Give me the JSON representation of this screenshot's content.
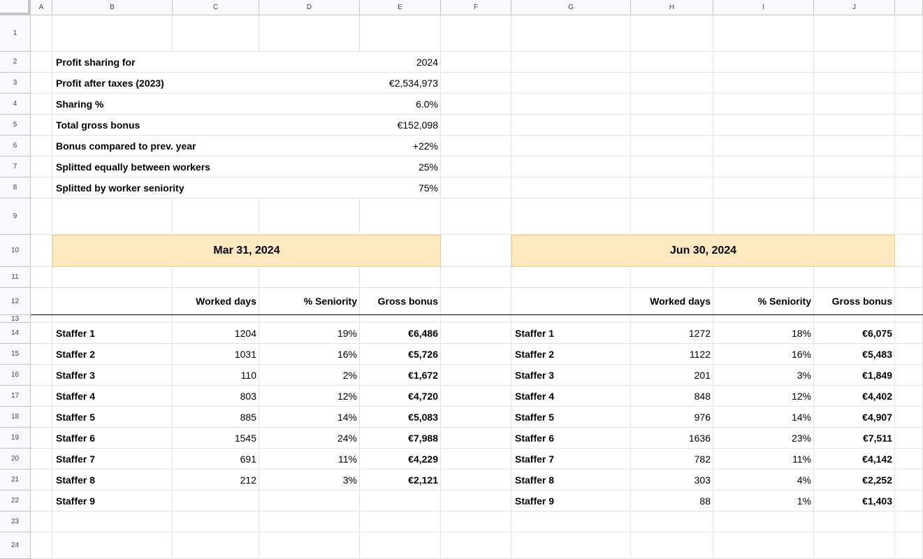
{
  "columns": [
    "A",
    "B",
    "C",
    "D",
    "E",
    "F",
    "G",
    "H",
    "I",
    "J"
  ],
  "rows": [
    "1",
    "2",
    "3",
    "4",
    "5",
    "6",
    "7",
    "8",
    "9",
    "10",
    "11",
    "12",
    "13",
    "14",
    "15",
    "16",
    "17",
    "18",
    "19",
    "20",
    "21",
    "22",
    "23",
    "24"
  ],
  "summary": [
    {
      "label": "Profit sharing for",
      "value": "2024"
    },
    {
      "label": "Profit after taxes (2023)",
      "value": "€2,534,973"
    },
    {
      "label": "Sharing %",
      "value": "6.0%"
    },
    {
      "label": "Total gross bonus",
      "value": "€152,098"
    },
    {
      "label": "Bonus compared to prev. year",
      "value": "+22%"
    },
    {
      "label": "Splitted equally between workers",
      "value": "25%"
    },
    {
      "label": "Splitted by worker seniority",
      "value": "75%"
    }
  ],
  "blocks": [
    {
      "date": "Mar 31, 2024",
      "headers": {
        "worked_days": "Worked days",
        "seniority": "% Seniority",
        "gross_bonus": "Gross bonus"
      },
      "rows": [
        {
          "name": "Staffer 1",
          "days": "1204",
          "pct": "19%",
          "bonus": "€6,486"
        },
        {
          "name": "Staffer 2",
          "days": "1031",
          "pct": "16%",
          "bonus": "€5,726"
        },
        {
          "name": "Staffer 3",
          "days": "110",
          "pct": "2%",
          "bonus": "€1,672"
        },
        {
          "name": "Staffer 4",
          "days": "803",
          "pct": "12%",
          "bonus": "€4,720"
        },
        {
          "name": "Staffer 5",
          "days": "885",
          "pct": "14%",
          "bonus": "€5,083"
        },
        {
          "name": "Staffer 6",
          "days": "1545",
          "pct": "24%",
          "bonus": "€7,988"
        },
        {
          "name": "Staffer 7",
          "days": "691",
          "pct": "11%",
          "bonus": "€4,229"
        },
        {
          "name": "Staffer 8",
          "days": "212",
          "pct": "3%",
          "bonus": "€2,121"
        },
        {
          "name": "Staffer 9",
          "days": "",
          "pct": "",
          "bonus": ""
        }
      ]
    },
    {
      "date": "Jun 30, 2024",
      "headers": {
        "worked_days": "Worked days",
        "seniority": "% Seniority",
        "gross_bonus": "Gross bonus"
      },
      "rows": [
        {
          "name": "Staffer 1",
          "days": "1272",
          "pct": "18%",
          "bonus": "€6,075"
        },
        {
          "name": "Staffer 2",
          "days": "1122",
          "pct": "16%",
          "bonus": "€5,483"
        },
        {
          "name": "Staffer 3",
          "days": "201",
          "pct": "3%",
          "bonus": "€1,849"
        },
        {
          "name": "Staffer 4",
          "days": "848",
          "pct": "12%",
          "bonus": "€4,402"
        },
        {
          "name": "Staffer 5",
          "days": "976",
          "pct": "14%",
          "bonus": "€4,907"
        },
        {
          "name": "Staffer 6",
          "days": "1636",
          "pct": "23%",
          "bonus": "€7,511"
        },
        {
          "name": "Staffer 7",
          "days": "782",
          "pct": "11%",
          "bonus": "€4,142"
        },
        {
          "name": "Staffer 8",
          "days": "303",
          "pct": "4%",
          "bonus": "€2,252"
        },
        {
          "name": "Staffer 9",
          "days": "88",
          "pct": "1%",
          "bonus": "€1,403"
        }
      ]
    }
  ],
  "colors": {
    "date_band": "#fde9c0",
    "date_band_border": "#f3cf7c",
    "gridline": "#e2e3e3",
    "header_bg": "#f8f9fa"
  }
}
